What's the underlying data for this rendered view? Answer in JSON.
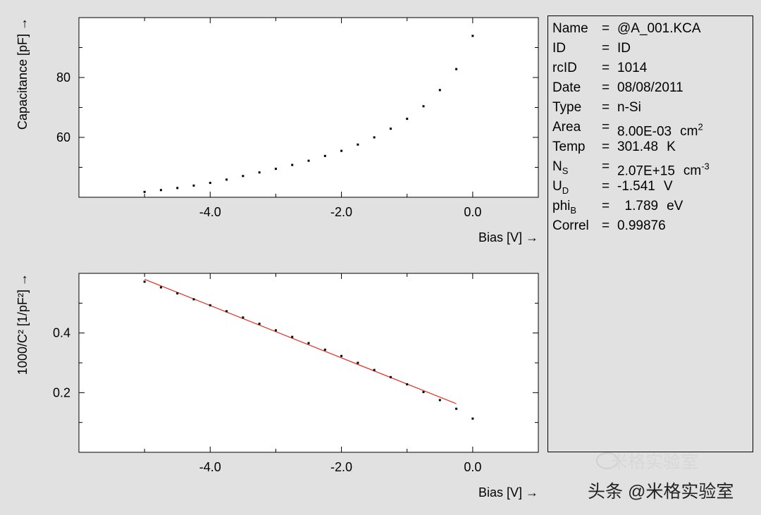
{
  "chart_data": [
    {
      "type": "scatter",
      "xlabel": "Bias [V]",
      "ylabel": "Capacitance [pF]",
      "xlim": [
        -6.0,
        1.0
      ],
      "ylim": [
        40,
        100
      ],
      "xticks": [
        -4.0,
        -2.0,
        0.0
      ],
      "xtick_labels": [
        "-4.0",
        "-2.0",
        "0.0"
      ],
      "yticks": [
        60,
        80
      ],
      "ytick_labels": [
        "60",
        "80"
      ],
      "grid": false,
      "series": [
        {
          "x": [
            -5.0,
            -4.75,
            -4.5,
            -4.25,
            -4.0,
            -3.75,
            -3.5,
            -3.25,
            -3.0,
            -2.75,
            -2.5,
            -2.25,
            -2.0,
            -1.75,
            -1.5,
            -1.25,
            -1.0,
            -0.75,
            -0.5,
            -0.25,
            0.0
          ],
          "y": [
            41.8,
            42.4,
            43.1,
            43.9,
            44.8,
            45.9,
            47.1,
            48.3,
            49.5,
            50.8,
            52.2,
            53.8,
            55.5,
            57.6,
            60.0,
            62.9,
            66.2,
            70.4,
            75.8,
            82.8,
            93.9
          ]
        }
      ]
    },
    {
      "type": "scatter",
      "xlabel": "Bias [V]",
      "ylabel": "1000/C² [1/pF²]",
      "xlim": [
        -6.0,
        1.0
      ],
      "ylim": [
        0.0,
        0.6
      ],
      "xticks": [
        -4.0,
        -2.0,
        0.0
      ],
      "xtick_labels": [
        "-4.0",
        "-2.0",
        "0.0"
      ],
      "yticks": [
        0.2,
        0.4
      ],
      "ytick_labels": [
        "0.2",
        "0.4"
      ],
      "grid": false,
      "series": [
        {
          "x": [
            -5.0,
            -4.75,
            -4.5,
            -4.25,
            -4.0,
            -3.75,
            -3.5,
            -3.25,
            -3.0,
            -2.75,
            -2.5,
            -2.25,
            -2.0,
            -1.75,
            -1.5,
            -1.25,
            -1.0,
            -0.75,
            -0.5,
            -0.25,
            0.0
          ],
          "y": [
            0.572,
            0.553,
            0.533,
            0.513,
            0.493,
            0.473,
            0.452,
            0.431,
            0.409,
            0.387,
            0.366,
            0.344,
            0.323,
            0.3,
            0.276,
            0.252,
            0.228,
            0.202,
            0.175,
            0.146,
            0.113
          ]
        }
      ],
      "fit_line": {
        "x": [
          -5.0,
          -0.25
        ],
        "y": [
          0.58,
          0.163
        ],
        "color": "#e8281e"
      }
    }
  ],
  "info": {
    "rows": [
      {
        "key": "Name",
        "sub": "",
        "value": "@A_001.KCA",
        "unit": "",
        "unit_sup": ""
      },
      {
        "key": "ID",
        "sub": "",
        "value": "ID",
        "unit": "",
        "unit_sup": ""
      },
      {
        "key": "rcID",
        "sub": "",
        "value": "1014",
        "unit": "",
        "unit_sup": ""
      },
      {
        "key": "Date",
        "sub": "",
        "value": "08/08/2011",
        "unit": "",
        "unit_sup": ""
      },
      {
        "key": "Type",
        "sub": "",
        "value": "n-Si",
        "unit": "",
        "unit_sup": ""
      },
      {
        "key": "Area",
        "sub": "",
        "value": "8.00E-03",
        "unit": "cm",
        "unit_sup": "2"
      },
      {
        "key": "Temp",
        "sub": "",
        "value": "301.48",
        "unit": "K",
        "unit_sup": ""
      },
      {
        "key": "N",
        "sub": "S",
        "value": "2.07E+15",
        "unit": "cm",
        "unit_sup": "-3"
      },
      {
        "key": "U",
        "sub": "D",
        "value": "-1.541",
        "unit": "V",
        "unit_sup": ""
      },
      {
        "key": "phi",
        "sub": "B",
        "value": "  1.789",
        "unit": "eV",
        "unit_sup": ""
      },
      {
        "key": "Correl",
        "sub": "",
        "value": "0.99876",
        "unit": "",
        "unit_sup": ""
      }
    ]
  },
  "watermark": {
    "text": "头条 @米格实验室",
    "faint_text": "米格实验室"
  },
  "colors": {
    "background": "#e1e1e1",
    "plot_bg": "#ffffff",
    "fit_line": "#e8281e",
    "marker": "#000000"
  }
}
